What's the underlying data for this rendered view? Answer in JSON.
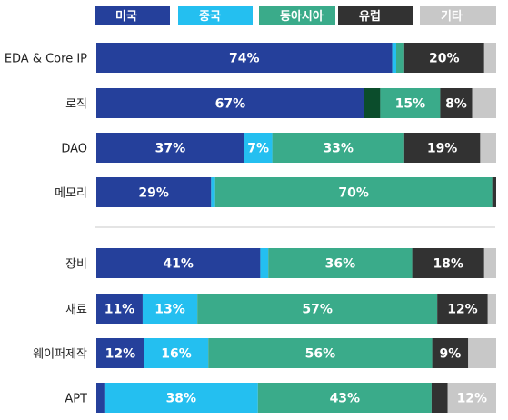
{
  "chart_data": {
    "type": "bar",
    "orientation": "horizontal",
    "stacked": true,
    "percent": true,
    "legend_position": "top",
    "series": [
      {
        "name": "미국",
        "color": "#25409b",
        "text_color": "#ffffff"
      },
      {
        "name": "중국",
        "color": "#24bff0",
        "text_color": "#ffffff"
      },
      {
        "name": "동아시아",
        "color": "#3aab8a",
        "text_color": "#ffffff"
      },
      {
        "name": "유럽",
        "color": "#323232",
        "text_color": "#ffffff"
      },
      {
        "name": "기타",
        "color": "#c8c8c8",
        "text_color": "#ffffff"
      }
    ],
    "groups": [
      {
        "categories": [
          "EDA & Core IP",
          "로직",
          "DAO",
          "메모리"
        ],
        "rows": [
          {
            "category": "EDA & Core IP",
            "values": [
              74,
              1,
              2,
              20,
              3
            ],
            "labels": [
              "74%",
              "",
              "",
              "20%",
              ""
            ]
          },
          {
            "category": "로직",
            "values": [
              67,
              4,
              15,
              8,
              6
            ],
            "labels": [
              "67%",
              "",
              "15%",
              "8%",
              ""
            ],
            "dark_green_segment": true
          },
          {
            "category": "DAO",
            "values": [
              37,
              7,
              33,
              19,
              4
            ],
            "labels": [
              "37%",
              "7%",
              "33%",
              "19%",
              ""
            ]
          },
          {
            "category": "메모리",
            "values": [
              29,
              1,
              70,
              1,
              0
            ],
            "labels": [
              "29%",
              "",
              "70%",
              "",
              ""
            ]
          }
        ]
      },
      {
        "categories": [
          "장비",
          "재료",
          "웨이퍼제작",
          "APT"
        ],
        "rows": [
          {
            "category": "장비",
            "values": [
              41,
              2,
              36,
              18,
              3
            ],
            "labels": [
              "41%",
              "",
              "36%",
              "18%",
              ""
            ]
          },
          {
            "category": "재료",
            "values": [
              11,
              13,
              57,
              12,
              2
            ],
            "labels": [
              "11%",
              "13%",
              "57%",
              "12%",
              ""
            ]
          },
          {
            "category": "웨이퍼제작",
            "values": [
              12,
              16,
              56,
              9,
              7
            ],
            "labels": [
              "12%",
              "16%",
              "56%",
              "9%",
              ""
            ]
          },
          {
            "category": "APT",
            "values": [
              2,
              38,
              43,
              4,
              12
            ],
            "labels": [
              "",
              "38%",
              "43%",
              "",
              "12%"
            ]
          }
        ]
      }
    ],
    "xlim": [
      0,
      100
    ]
  },
  "colors": {
    "divider": "#c8c8c8",
    "dark_green": "#0b4d2c"
  }
}
